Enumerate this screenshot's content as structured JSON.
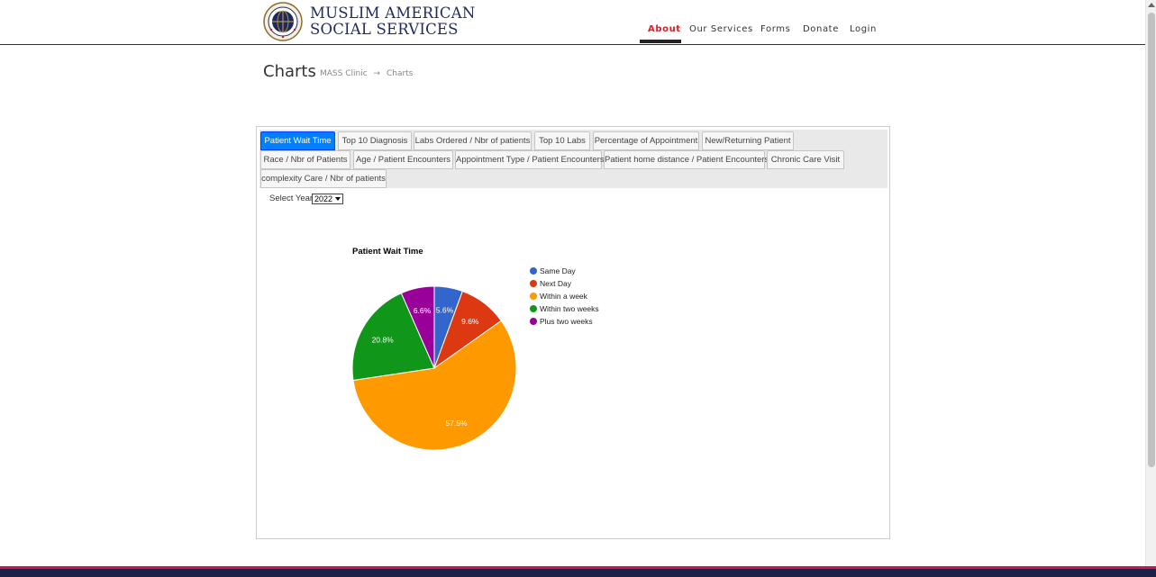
{
  "header": {
    "org_line1": "MUSLIM AMERICAN",
    "org_line2": "SOCIAL SERVICES",
    "logo_icon": "mass-emblem-icon",
    "nav": [
      {
        "label": "About",
        "active": true
      },
      {
        "label": "Our Services",
        "active": false
      },
      {
        "label": "Forms",
        "active": false
      },
      {
        "label": "Donate",
        "active": false
      },
      {
        "label": "Login",
        "active": false
      }
    ]
  },
  "page": {
    "title": "Charts",
    "breadcrumb": [
      "MASS Clinic",
      "→",
      "Charts"
    ]
  },
  "tabs": [
    {
      "label": "Patient Wait Time",
      "active": true
    },
    {
      "label": "Top 10 Diagnosis",
      "active": false
    },
    {
      "label": "Labs Ordered / Nbr of patients",
      "active": false
    },
    {
      "label": "Top 10 Labs",
      "active": false
    },
    {
      "label": "Percentage of Appointment",
      "active": false
    },
    {
      "label": "New/Returning Patient",
      "active": false
    },
    {
      "label": "Race / Nbr of Patients",
      "active": false
    },
    {
      "label": "Age / Patient Encounters",
      "active": false
    },
    {
      "label": "Appointment Type / Patient Encounters",
      "active": false
    },
    {
      "label": "Patient home distance / Patient Encounters",
      "active": false
    },
    {
      "label": "Chronic Care Visit",
      "active": false
    },
    {
      "label": "complexity Care / Nbr of patients",
      "active": false
    }
  ],
  "filter": {
    "label": "Select Year:",
    "value": "2022"
  },
  "colors": {
    "accent": "#d3202a",
    "tab_active": "#007fff",
    "footer": "#1c2147"
  },
  "chart_data": {
    "type": "pie",
    "title": "Patient Wait Time",
    "legend_position": "right",
    "categories": [
      "Same Day",
      "Next Day",
      "Within a week",
      "Within two weeks",
      "Plus two weeks"
    ],
    "values": [
      5.6,
      9.6,
      57.5,
      20.8,
      6.6
    ],
    "value_labels": [
      "5.6%",
      "9.6%",
      "57.5%",
      "20.8%",
      "6.6%"
    ],
    "colors": [
      "#3366cc",
      "#dc3912",
      "#ff9900",
      "#109618",
      "#990099"
    ]
  }
}
